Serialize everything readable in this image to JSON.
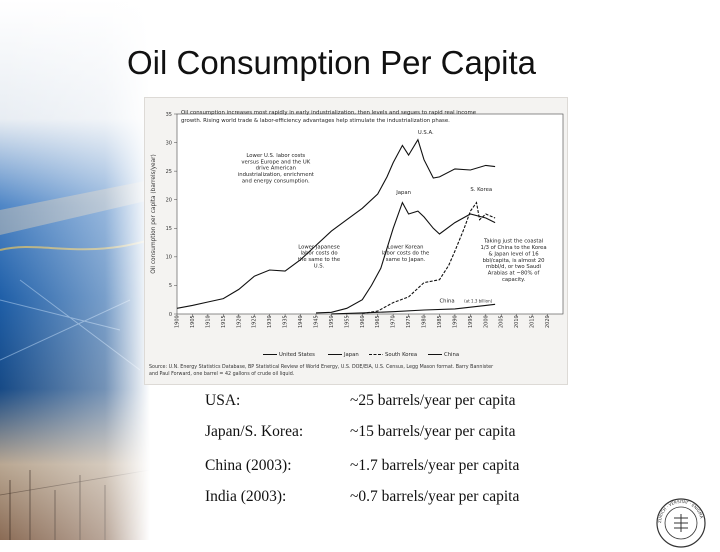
{
  "slide": {
    "title": "Oil Consumption Per Capita"
  },
  "chart_data": {
    "type": "line",
    "ylabel": "Oil consumption per capita (barrels/year)",
    "ylim": [
      0,
      35
    ],
    "xlim": [
      1900,
      2025
    ],
    "yticks": [
      "0",
      "5",
      "10",
      "15",
      "20",
      "25",
      "30",
      "35"
    ],
    "xticks": [
      "1900",
      "1905",
      "1910",
      "1915",
      "1920",
      "1925",
      "1930",
      "1935",
      "1940",
      "1945",
      "1950",
      "1955",
      "1960",
      "1965",
      "1970",
      "1975",
      "1980",
      "1985",
      "1990",
      "1995",
      "2000",
      "2005",
      "2010",
      "2015",
      "2020"
    ],
    "header_lines": [
      "Oil consumption increases most rapidly in early industrialization, then levels and segues to rapid real income",
      "growth. Rising world trade & labor-efficiency advantages help stimulate the industrialization phase."
    ],
    "series": [
      {
        "name": "United States",
        "color": "#111111",
        "x": [
          1900,
          1905,
          1910,
          1915,
          1920,
          1925,
          1930,
          1935,
          1940,
          1945,
          1950,
          1955,
          1960,
          1965,
          1968,
          1970,
          1973,
          1975,
          1978,
          1980,
          1983,
          1985,
          1990,
          1995,
          2000,
          2003
        ],
        "y": [
          1.0,
          1.5,
          2.1,
          2.7,
          4.3,
          6.6,
          7.7,
          7.5,
          9.5,
          12.0,
          14.5,
          16.5,
          18.5,
          21.0,
          24.0,
          26.5,
          29.5,
          27.8,
          30.5,
          27.0,
          23.8,
          24.0,
          25.4,
          25.2,
          26.0,
          25.8
        ]
      },
      {
        "name": "Japan",
        "color": "#111111",
        "x": [
          1945,
          1950,
          1955,
          1960,
          1963,
          1966,
          1970,
          1973,
          1975,
          1978,
          1980,
          1983,
          1985,
          1990,
          1995,
          2000,
          2003
        ],
        "y": [
          0.2,
          0.3,
          1.0,
          2.5,
          5.0,
          8.0,
          15.0,
          19.5,
          17.5,
          18.0,
          17.0,
          15.0,
          14.0,
          16.0,
          17.5,
          16.8,
          16.0
        ]
      },
      {
        "name": "South Korea",
        "color": "#111111",
        "x": [
          1960,
          1965,
          1970,
          1975,
          1980,
          1985,
          1988,
          1990,
          1993,
          1995,
          1997,
          1998,
          2000,
          2003
        ],
        "y": [
          0.1,
          0.5,
          2.0,
          3.0,
          5.5,
          6.0,
          8.5,
          11.0,
          15.0,
          18.0,
          19.5,
          16.5,
          17.5,
          16.8
        ]
      },
      {
        "name": "China",
        "color": "#111111",
        "x": [
          1950,
          1960,
          1970,
          1980,
          1990,
          2000,
          2003
        ],
        "y": [
          0.02,
          0.2,
          0.4,
          0.7,
          0.9,
          1.5,
          1.7
        ]
      }
    ],
    "labels": {
      "usa": "U.S.A.",
      "japan": "Japan",
      "skorea": "S. Korea",
      "china": "China",
      "china_pop": "(at 1.3 billion)"
    },
    "annotations": {
      "us_note": [
        "Lower U.S. labor costs",
        "versus Europe and the UK",
        "drive American",
        "industrialization, enrichment",
        "and energy consumption."
      ],
      "japan_note": [
        "Lower Japanese",
        "labor costs do",
        "the same to the",
        "U.S."
      ],
      "korea_note": [
        "Lower Korean",
        "labor costs do the",
        "same to Japan."
      ],
      "china_note": [
        "Taking just the coastal",
        "1/3 of China to the Korea",
        "& Japan level of 16",
        "bbl/capita, is almost 20",
        "mbbl/d, or two Saudi",
        "Arabias at ~80% of",
        "capacity."
      ]
    },
    "legend": [
      "United States",
      "Japan",
      "South Korea",
      "China"
    ],
    "source": [
      "Source: U.N. Energy Statistics Database, BP Statistical Review of World Energy, U.S. DOE/EIA, U.S. Census, Legg Mason format. Barry Bannister",
      "and Paul Forward, one barrel = 42 gallons of crude oil liquid."
    ]
  },
  "stats": [
    {
      "label": "USA:",
      "value": "~25 barrels/year per capita"
    },
    {
      "label": "Japan/S. Korea:",
      "value": "~15 barrels/year per capita"
    },
    {
      "label": "China (2003):",
      "value": "~1.7 barrels/year per capita"
    },
    {
      "label": "India (2003):",
      "value": "~0.7 barrels/year per capita"
    }
  ],
  "logo": {
    "text": "ZÜRICH · VERSITÄT · ENIGMA"
  }
}
